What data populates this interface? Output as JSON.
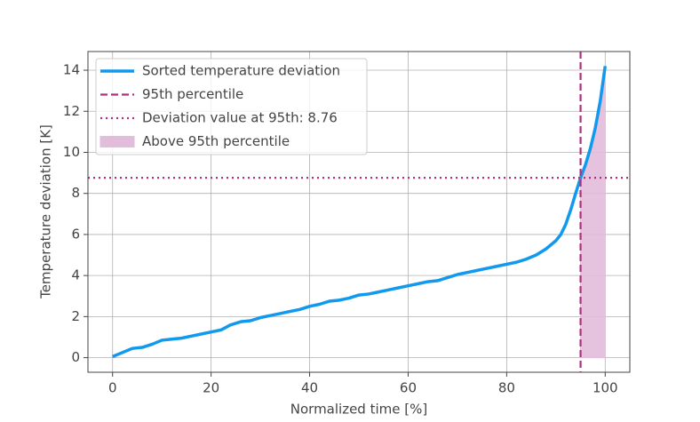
{
  "chart_data": {
    "type": "line",
    "x_label": "Normalized time [%]",
    "y_label": "Temperature deviation [K]",
    "xlim": [
      -5,
      105
    ],
    "ylim": [
      -0.71,
      14.91
    ],
    "xticks": [
      0,
      20,
      40,
      60,
      80,
      100
    ],
    "yticks": [
      0,
      2,
      4,
      6,
      8,
      10,
      12,
      14
    ],
    "grid": true,
    "legend": "upper-left",
    "series": [
      {
        "name": "Sorted temperature deviation",
        "color": "#1199ee",
        "x": [
          0,
          2,
          4,
          6,
          8,
          10,
          12,
          14,
          16,
          18,
          20,
          22,
          24,
          26,
          28,
          30,
          32,
          34,
          36,
          38,
          40,
          42,
          44,
          46,
          48,
          50,
          52,
          54,
          56,
          58,
          60,
          62,
          64,
          66,
          68,
          70,
          72,
          74,
          76,
          78,
          80,
          82,
          84,
          86,
          88,
          90,
          91,
          92,
          93,
          94,
          95,
          96,
          97,
          98,
          99,
          100
        ],
        "values": [
          0.05,
          0.25,
          0.45,
          0.5,
          0.65,
          0.85,
          0.9,
          0.95,
          1.05,
          1.15,
          1.25,
          1.35,
          1.6,
          1.75,
          1.8,
          1.95,
          2.05,
          2.15,
          2.25,
          2.35,
          2.5,
          2.6,
          2.75,
          2.8,
          2.9,
          3.05,
          3.1,
          3.2,
          3.3,
          3.4,
          3.5,
          3.6,
          3.7,
          3.75,
          3.9,
          4.05,
          4.15,
          4.25,
          4.35,
          4.45,
          4.55,
          4.65,
          4.8,
          5.0,
          5.3,
          5.7,
          6.0,
          6.5,
          7.2,
          8.0,
          8.76,
          9.4,
          10.2,
          11.2,
          12.5,
          14.2
        ]
      }
    ],
    "reference_lines": [
      {
        "name": "95th percentile",
        "orientation": "vertical",
        "value": 95,
        "color": "#b0307f",
        "style": "dashed"
      },
      {
        "name": "Deviation value at 95th: 8.76",
        "orientation": "horizontal",
        "value": 8.76,
        "color": "#b0307f",
        "style": "dotted"
      }
    ],
    "fill": {
      "name": "Above 95th percentile",
      "color": "#e2bddb"
    }
  }
}
